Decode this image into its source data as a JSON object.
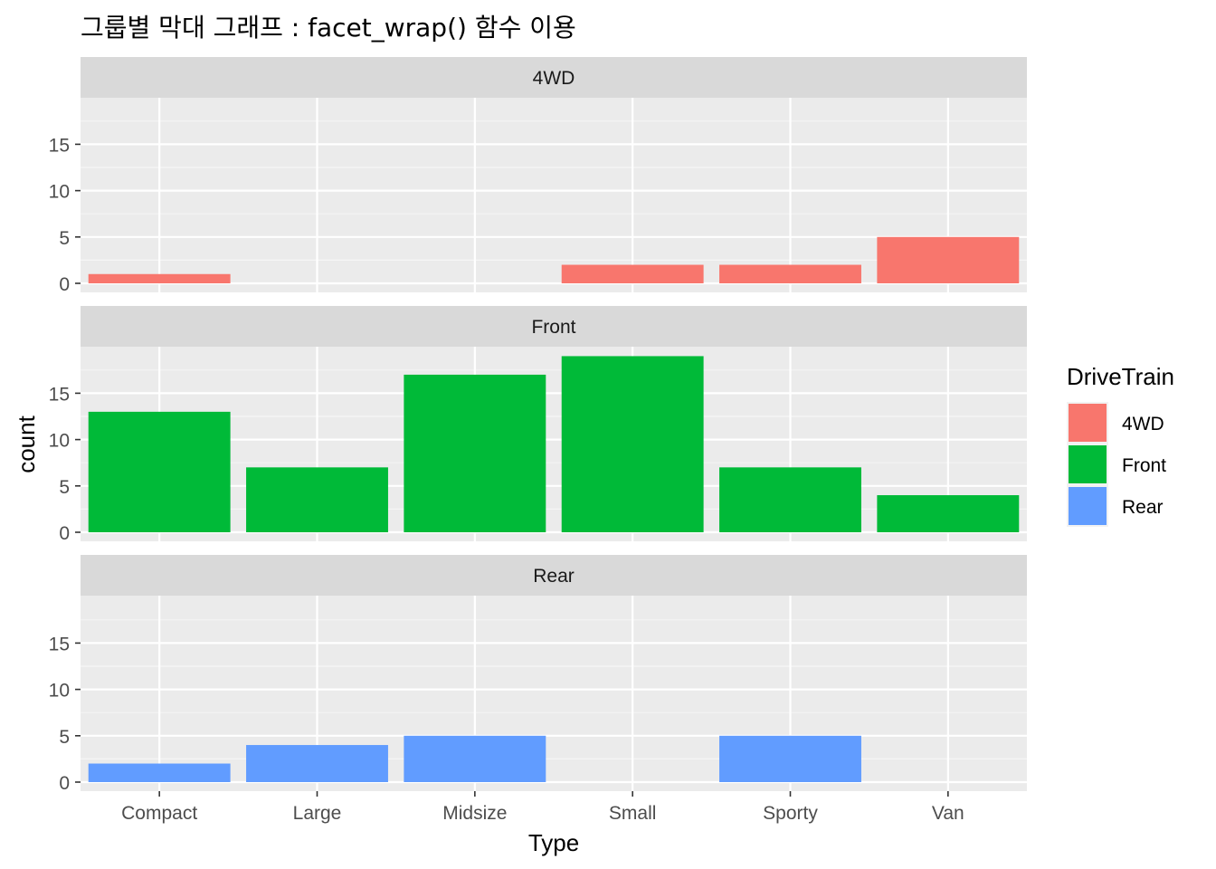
{
  "title": "그룹별 막대 그래프 : facet_wrap() 함수 이용",
  "colors": {
    "panel_bg": "#EBEBEB",
    "strip_bg": "#D9D9D9",
    "grid_major": "#FFFFFF",
    "grid_minor": "#F5F5F5",
    "tick": "#333333"
  },
  "chart_data": {
    "type": "bar",
    "facet_by": "DriveTrain",
    "facets": [
      "4WD",
      "Front",
      "Rear"
    ],
    "categories": [
      "Compact",
      "Large",
      "Midsize",
      "Small",
      "Sporty",
      "Van"
    ],
    "xlabel": "Type",
    "ylabel": "count",
    "ylim": [
      0,
      19
    ],
    "yticks": [
      0,
      5,
      10,
      15
    ],
    "grid": true,
    "series": [
      {
        "name": "4WD",
        "color": "#F8766D",
        "values": [
          1,
          0,
          0,
          2,
          2,
          5
        ]
      },
      {
        "name": "Front",
        "color": "#00BA38",
        "values": [
          13,
          7,
          17,
          19,
          7,
          4
        ]
      },
      {
        "name": "Rear",
        "color": "#619CFF",
        "values": [
          2,
          4,
          5,
          0,
          5,
          0
        ]
      }
    ],
    "legend": {
      "title": "DriveTrain",
      "position": "right",
      "entries": [
        "4WD",
        "Front",
        "Rear"
      ]
    }
  }
}
